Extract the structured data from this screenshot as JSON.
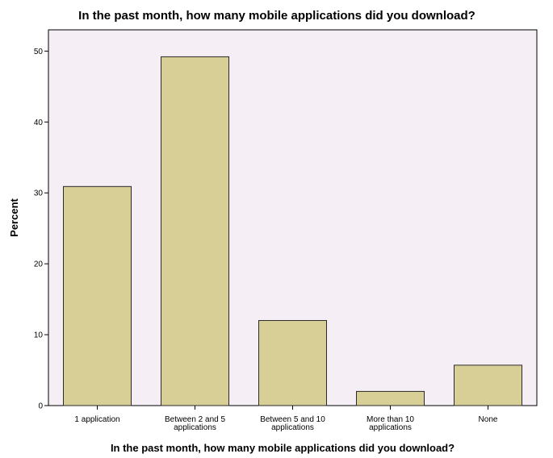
{
  "chart_data": {
    "type": "bar",
    "title": "In the past month, how many mobile applications did you download?",
    "xlabel": "In the past month, how many mobile applications did you download?",
    "ylabel": "Percent",
    "categories": [
      [
        "1 application"
      ],
      [
        "Between 2 and 5",
        "applications"
      ],
      [
        "Between 5 and 10",
        "applications"
      ],
      [
        "More than 10",
        "applications"
      ],
      [
        "None"
      ]
    ],
    "values": [
      30.9,
      49.2,
      12.0,
      2.0,
      5.7
    ],
    "ylim": [
      0,
      53
    ],
    "yticks": [
      0,
      10,
      20,
      30,
      40,
      50
    ],
    "grid": false,
    "colors": {
      "plot_background": "#f5eef5",
      "bar_fill": "#d8cf97",
      "bar_stroke": "#2a2a2a",
      "axis": "#000000"
    }
  }
}
